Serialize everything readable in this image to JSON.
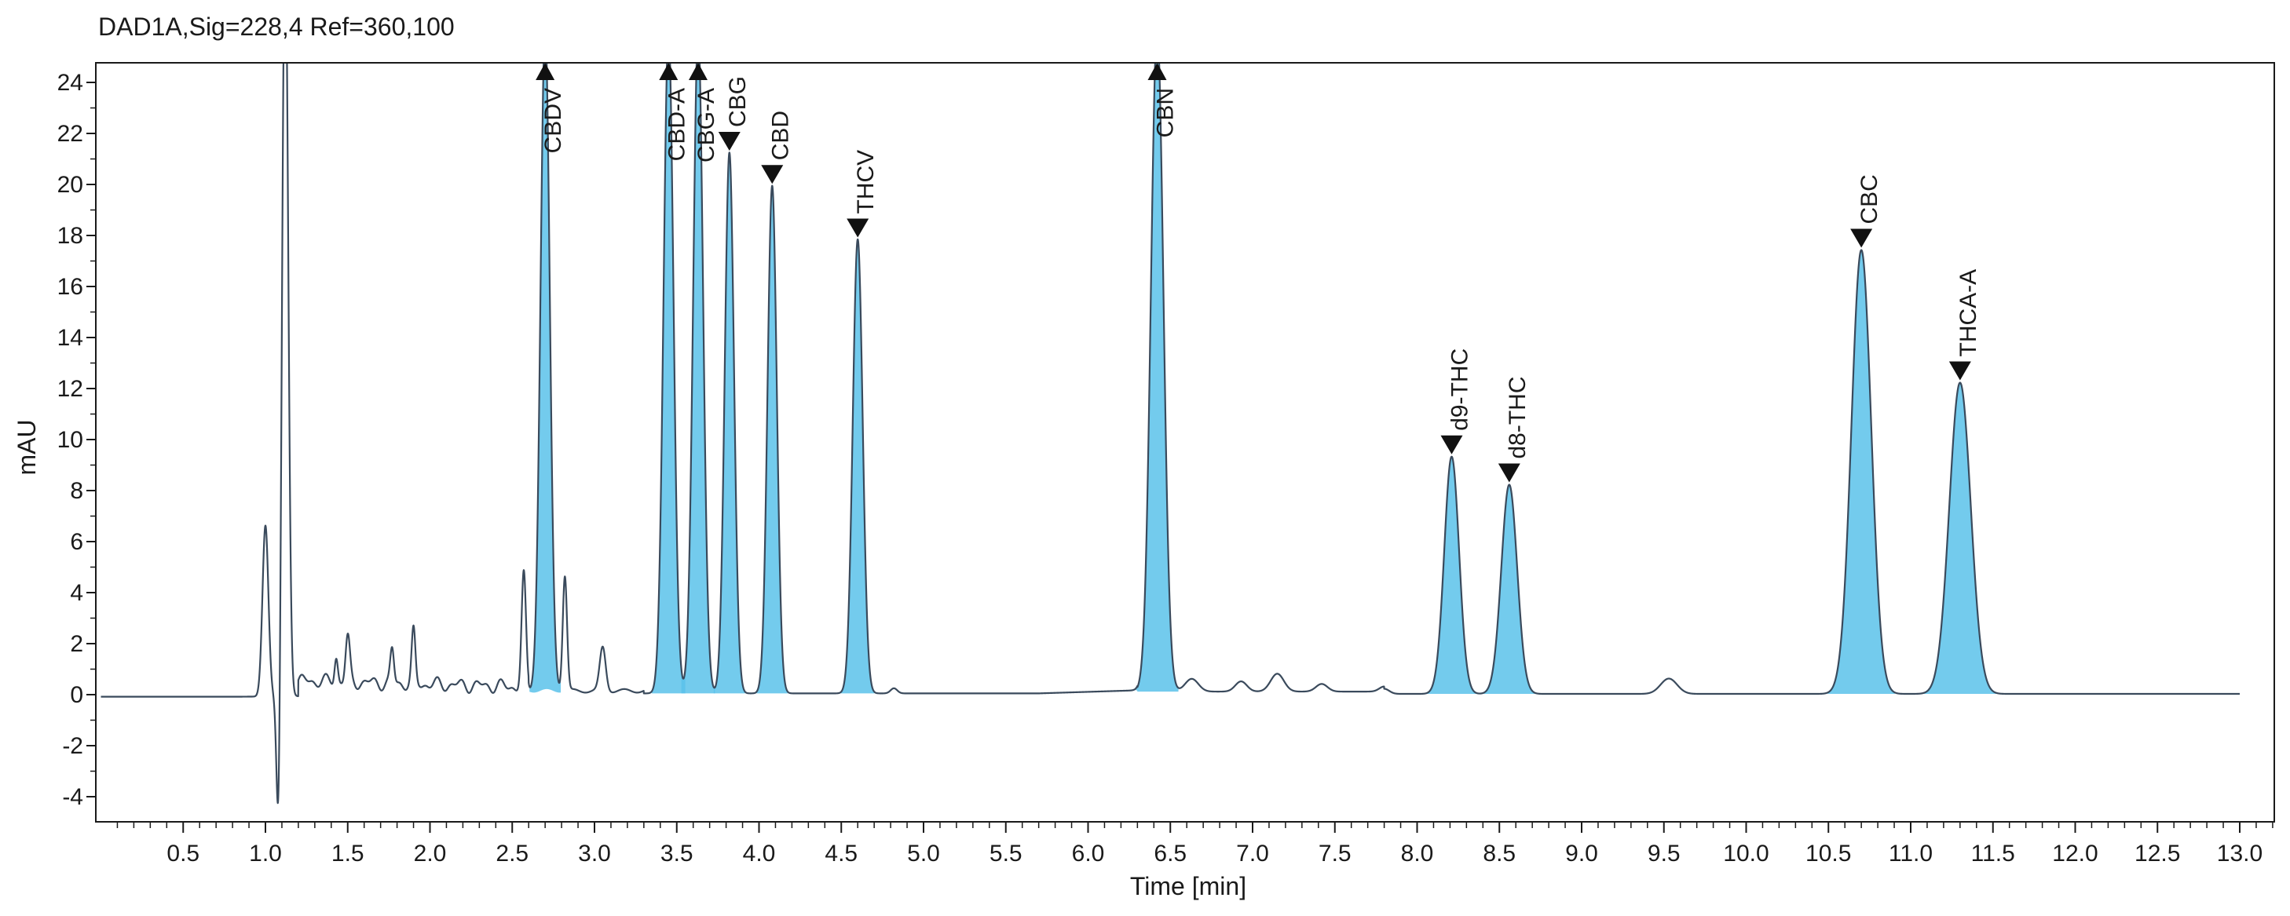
{
  "chart_data": {
    "type": "line",
    "title": "DAD1A,Sig=228,4  Ref=360,100",
    "xlabel": "Time [min]",
    "ylabel": "mAU",
    "xlim": [
      0,
      13.25
    ],
    "ylim": [
      -5,
      25
    ],
    "x_ticks": [
      0.5,
      1.0,
      1.5,
      2.0,
      2.5,
      3.0,
      3.5,
      4.0,
      4.5,
      5.0,
      5.5,
      6.0,
      6.5,
      7.0,
      7.5,
      8.0,
      8.5,
      9.0,
      9.5,
      10.0,
      10.5,
      11.0,
      11.5,
      12.0,
      12.5,
      13.0
    ],
    "x_tick_labels": [
      "0.5",
      "1.0",
      "1.5",
      "2.0",
      "2.5",
      "3.0",
      "3.5",
      "4.0",
      "4.5",
      "5.0",
      "5.5",
      "6.0",
      "6.5",
      "7.0",
      "7.5",
      "8.0",
      "8.5",
      "9.0",
      "9.5",
      "10.0",
      "10.5",
      "11.0",
      "11.5",
      "12.0",
      "12.5",
      "13.0"
    ],
    "y_ticks": [
      -4,
      -2,
      0,
      2,
      4,
      6,
      8,
      10,
      12,
      14,
      16,
      18,
      20,
      22,
      24
    ],
    "y_tick_labels": [
      "-4",
      "-2",
      "0",
      "2",
      "4",
      "6",
      "8",
      "10",
      "12",
      "14",
      "16",
      "18",
      "20",
      "22",
      "24"
    ],
    "grid": false,
    "line_color": "#3a4a5c",
    "fill_color": "#5bc2ea",
    "marker_color": "#111111",
    "labeled_peaks": [
      {
        "name": "CBDV",
        "rt": 2.7,
        "height": 26.0,
        "width": 0.028,
        "marker": "up"
      },
      {
        "name": "CBD-A",
        "rt": 3.45,
        "height": 26.0,
        "width": 0.03,
        "marker": "up"
      },
      {
        "name": "CBG-A",
        "rt": 3.63,
        "height": 26.0,
        "width": 0.03,
        "marker": "up"
      },
      {
        "name": "CBG",
        "rt": 3.82,
        "height": 21.2,
        "width": 0.028,
        "marker": "down"
      },
      {
        "name": "CBD",
        "rt": 4.08,
        "height": 19.9,
        "width": 0.028,
        "marker": "down"
      },
      {
        "name": "THCV",
        "rt": 4.6,
        "height": 17.8,
        "width": 0.03,
        "marker": "down"
      },
      {
        "name": "CBN",
        "rt": 6.42,
        "height": 26.0,
        "width": 0.038,
        "marker": "up"
      },
      {
        "name": "d9-THC",
        "rt": 8.21,
        "height": 9.3,
        "width": 0.045,
        "marker": "down"
      },
      {
        "name": "d8-THC",
        "rt": 8.56,
        "height": 8.2,
        "width": 0.048,
        "marker": "down"
      },
      {
        "name": "CBC",
        "rt": 10.7,
        "height": 17.4,
        "width": 0.06,
        "marker": "down"
      },
      {
        "name": "THCA-A",
        "rt": 11.3,
        "height": 12.2,
        "width": 0.065,
        "marker": "down"
      }
    ],
    "minor_peaks": [
      {
        "rt": 1.0,
        "height": 6.7,
        "width": 0.018
      },
      {
        "rt": 1.43,
        "height": 1.0,
        "width": 0.01
      },
      {
        "rt": 1.5,
        "height": 1.7,
        "width": 0.013
      },
      {
        "rt": 1.77,
        "height": 1.3,
        "width": 0.011
      },
      {
        "rt": 1.9,
        "height": 2.0,
        "width": 0.011
      },
      {
        "rt": 2.57,
        "height": 4.3,
        "width": 0.013
      },
      {
        "rt": 2.82,
        "height": 4.5,
        "width": 0.013
      },
      {
        "rt": 3.05,
        "height": 1.7,
        "width": 0.018
      },
      {
        "rt": 4.82,
        "height": 0.2,
        "width": 0.02
      },
      {
        "rt": 6.63,
        "height": 0.5,
        "width": 0.04
      },
      {
        "rt": 6.93,
        "height": 0.4,
        "width": 0.035
      },
      {
        "rt": 7.15,
        "height": 0.7,
        "width": 0.04
      },
      {
        "rt": 7.42,
        "height": 0.3,
        "width": 0.035
      },
      {
        "rt": 7.8,
        "height": 0.2,
        "width": 0.03
      },
      {
        "rt": 9.53,
        "height": 0.6,
        "width": 0.05
      }
    ],
    "solvent_front": {
      "rt_up": 1.12,
      "rt_down": 1.08,
      "up_height": 30,
      "down_height": -6
    }
  }
}
